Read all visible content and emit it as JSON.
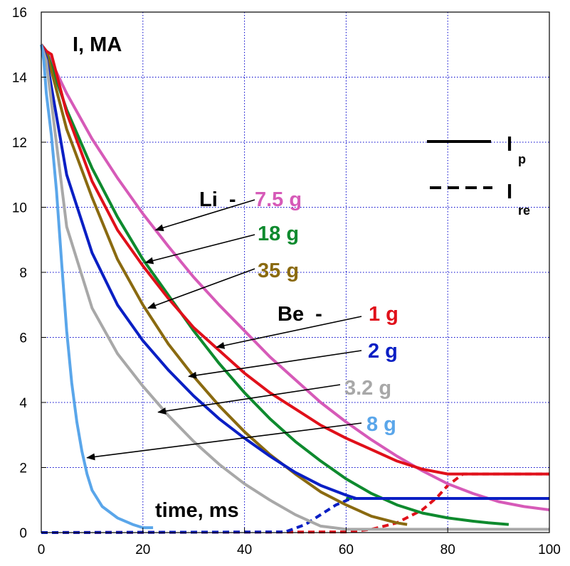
{
  "chart_data": {
    "type": "line",
    "title": "I, MA",
    "xlabel": "time, ms",
    "ylabel": "",
    "xlim": [
      0,
      100
    ],
    "ylim": [
      0,
      16
    ],
    "x_ticks": [
      "0",
      "20",
      "40",
      "60",
      "80",
      "100"
    ],
    "y_ticks": [
      "0",
      "2",
      "4",
      "6",
      "8",
      "10",
      "12",
      "14",
      "16"
    ],
    "grid": true,
    "legend": {
      "placement": "top-right",
      "items": [
        {
          "main": "I",
          "sub": "p",
          "style": "solid"
        },
        {
          "main": "I",
          "sub": "re",
          "style": "dashed"
        }
      ]
    },
    "group_labels": {
      "li": "Li  -",
      "be": "Be  -"
    },
    "series": [
      {
        "name": "7.5 g",
        "group": "Li",
        "color": "#d65ab8",
        "ip": [
          [
            0,
            15
          ],
          [
            1,
            14.8
          ],
          [
            5,
            13.5
          ],
          [
            10,
            12.1
          ],
          [
            15,
            10.9
          ],
          [
            20,
            9.8
          ],
          [
            25,
            8.8
          ],
          [
            30,
            7.85
          ],
          [
            35,
            7.0
          ],
          [
            40,
            6.2
          ],
          [
            45,
            5.4
          ],
          [
            50,
            4.7
          ],
          [
            55,
            4.0
          ],
          [
            60,
            3.4
          ],
          [
            65,
            2.85
          ],
          [
            70,
            2.35
          ],
          [
            75,
            1.9
          ],
          [
            80,
            1.5
          ],
          [
            85,
            1.2
          ],
          [
            90,
            0.95
          ],
          [
            95,
            0.8
          ],
          [
            100,
            0.7
          ]
        ]
      },
      {
        "name": "18 g",
        "group": "Li",
        "color": "#0e8a2e",
        "ip": [
          [
            0,
            15
          ],
          [
            1,
            14.8
          ],
          [
            5,
            13.0
          ],
          [
            10,
            11.2
          ],
          [
            15,
            9.7
          ],
          [
            20,
            8.4
          ],
          [
            25,
            7.3
          ],
          [
            30,
            6.2
          ],
          [
            35,
            5.2
          ],
          [
            40,
            4.3
          ],
          [
            45,
            3.5
          ],
          [
            50,
            2.8
          ],
          [
            55,
            2.2
          ],
          [
            60,
            1.65
          ],
          [
            65,
            1.2
          ],
          [
            70,
            0.85
          ],
          [
            75,
            0.6
          ],
          [
            80,
            0.45
          ],
          [
            85,
            0.35
          ],
          [
            88,
            0.3
          ],
          [
            92,
            0.25
          ]
        ],
        "ire": [
          [
            60,
            1.05
          ],
          [
            62,
            1.05
          ]
        ]
      },
      {
        "name": "35 g",
        "group": "Li",
        "color": "#8a6a10",
        "ip": [
          [
            0,
            15
          ],
          [
            1,
            14.8
          ],
          [
            5,
            12.4
          ],
          [
            10,
            10.3
          ],
          [
            15,
            8.4
          ],
          [
            20,
            7.0
          ],
          [
            25,
            5.8
          ],
          [
            30,
            4.8
          ],
          [
            35,
            3.9
          ],
          [
            40,
            3.1
          ],
          [
            45,
            2.4
          ],
          [
            50,
            1.8
          ],
          [
            55,
            1.25
          ],
          [
            60,
            0.85
          ],
          [
            65,
            0.5
          ],
          [
            70,
            0.3
          ],
          [
            72,
            0.25
          ]
        ]
      },
      {
        "name": "1 g",
        "group": "Be",
        "color": "#e0101a",
        "ip": [
          [
            0,
            15
          ],
          [
            1,
            14.8
          ],
          [
            2,
            14.7
          ],
          [
            5,
            12.9
          ],
          [
            10,
            10.8
          ],
          [
            15,
            9.3
          ],
          [
            20,
            8.2
          ],
          [
            25,
            7.2
          ],
          [
            30,
            6.3
          ],
          [
            35,
            5.6
          ],
          [
            40,
            4.9
          ],
          [
            45,
            4.3
          ],
          [
            50,
            3.8
          ],
          [
            55,
            3.3
          ],
          [
            60,
            2.9
          ],
          [
            65,
            2.55
          ],
          [
            70,
            2.2
          ],
          [
            75,
            1.95
          ],
          [
            80,
            1.8
          ],
          [
            85,
            1.8
          ],
          [
            100,
            1.8
          ]
        ],
        "ire": [
          [
            0,
            0
          ],
          [
            60,
            0.02
          ],
          [
            65,
            0.1
          ],
          [
            70,
            0.3
          ],
          [
            75,
            0.7
          ],
          [
            78,
            1.1
          ],
          [
            80,
            1.45
          ],
          [
            83,
            1.8
          ],
          [
            100,
            1.8
          ]
        ]
      },
      {
        "name": "2 g",
        "group": "Be",
        "color": "#0a1fc4",
        "ip": [
          [
            0,
            15
          ],
          [
            1,
            14.6
          ],
          [
            5,
            11.0
          ],
          [
            10,
            8.6
          ],
          [
            15,
            7.0
          ],
          [
            20,
            5.9
          ],
          [
            25,
            5.0
          ],
          [
            30,
            4.2
          ],
          [
            35,
            3.5
          ],
          [
            40,
            2.9
          ],
          [
            45,
            2.35
          ],
          [
            50,
            1.85
          ],
          [
            55,
            1.45
          ],
          [
            60,
            1.15
          ],
          [
            62,
            1.05
          ],
          [
            100,
            1.05
          ]
        ],
        "ire": [
          [
            0,
            0
          ],
          [
            48,
            0.02
          ],
          [
            52,
            0.25
          ],
          [
            55,
            0.55
          ],
          [
            58,
            0.85
          ],
          [
            61,
            1.05
          ],
          [
            100,
            1.05
          ]
        ]
      },
      {
        "name": "3.2 g",
        "group": "Be",
        "color": "#a8a8a8",
        "ip": [
          [
            0,
            15
          ],
          [
            1,
            14.5
          ],
          [
            5,
            9.4
          ],
          [
            10,
            6.9
          ],
          [
            15,
            5.5
          ],
          [
            20,
            4.5
          ],
          [
            25,
            3.6
          ],
          [
            30,
            2.8
          ],
          [
            35,
            2.1
          ],
          [
            40,
            1.5
          ],
          [
            45,
            1.0
          ],
          [
            50,
            0.55
          ],
          [
            55,
            0.2
          ],
          [
            60,
            0.1
          ],
          [
            100,
            0.1
          ]
        ]
      },
      {
        "name": "8 g",
        "group": "Be",
        "color": "#5aa6ea",
        "ip": [
          [
            0,
            15
          ],
          [
            0.5,
            14.5
          ],
          [
            1,
            13.5
          ],
          [
            2,
            12.2
          ],
          [
            3,
            10.5
          ],
          [
            4,
            8.3
          ],
          [
            5,
            6.2
          ],
          [
            6,
            4.6
          ],
          [
            7,
            3.4
          ],
          [
            8,
            2.5
          ],
          [
            9,
            1.8
          ],
          [
            10,
            1.3
          ],
          [
            12,
            0.8
          ],
          [
            15,
            0.45
          ],
          [
            18,
            0.25
          ],
          [
            20,
            0.15
          ],
          [
            22,
            0.15
          ]
        ]
      }
    ],
    "annotations": [
      {
        "series": "7.5 g",
        "target_x": 22.5,
        "target_y": 9.3
      },
      {
        "series": "18 g",
        "target_x": 20.5,
        "target_y": 8.3
      },
      {
        "series": "35 g",
        "target_x": 21.0,
        "target_y": 6.9
      },
      {
        "series": "1 g",
        "target_x": 34.5,
        "target_y": 5.7
      },
      {
        "series": "2 g",
        "target_x": 29.0,
        "target_y": 4.8
      },
      {
        "series": "3.2 g",
        "target_x": 23.0,
        "target_y": 3.7
      },
      {
        "series": "8 g",
        "target_x": 9.0,
        "target_y": 2.3
      }
    ]
  }
}
